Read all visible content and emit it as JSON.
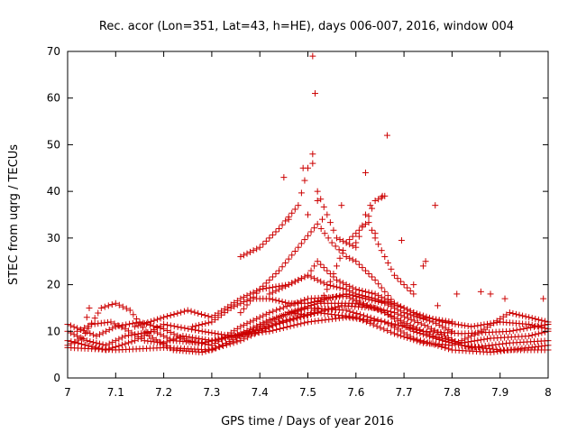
{
  "chart_data": {
    "type": "scatter",
    "title": "Rec. acor (Lon=351, Lat=43, h=HE), days 006-007, 2016, window 004",
    "xlabel": "GPS time / Days of year 2016",
    "ylabel": "STEC from uqrg / TECUs",
    "xlim": [
      7,
      8
    ],
    "ylim": [
      0,
      70
    ],
    "x_ticks": [
      7,
      7.1,
      7.2,
      7.3,
      7.4,
      7.5,
      7.6,
      7.7,
      7.8,
      7.9,
      8
    ],
    "x_tick_labels": [
      "7",
      "7.1",
      "7.2",
      "7.3",
      "7.4",
      "7.5",
      "7.6",
      "7.7",
      "7.8",
      "7.9",
      "8"
    ],
    "y_ticks": [
      0,
      10,
      20,
      30,
      40,
      50,
      60,
      70
    ],
    "y_tick_labels": [
      "0",
      "10",
      "20",
      "30",
      "40",
      "50",
      "60",
      "70"
    ],
    "marker": "+",
    "marker_color": "#cc0000",
    "grid": false,
    "point_spacing": 0.007,
    "tracks": [
      {
        "name": "track-1",
        "points": [
          [
            7.0,
            6.5
          ],
          [
            7.1,
            6.0
          ],
          [
            7.2,
            6.5
          ],
          [
            7.3,
            6.0
          ],
          [
            7.38,
            10.0
          ],
          [
            7.46,
            14.0
          ],
          [
            7.52,
            16.0
          ],
          [
            7.6,
            16.0
          ],
          [
            7.68,
            14.0
          ],
          [
            7.75,
            11.0
          ],
          [
            7.82,
            7.0
          ],
          [
            7.9,
            6.0
          ],
          [
            8.0,
            6.0
          ]
        ]
      },
      {
        "name": "track-2",
        "points": [
          [
            7.0,
            11.5
          ],
          [
            7.06,
            9.0
          ],
          [
            7.1,
            11.0
          ],
          [
            7.15,
            12.0
          ],
          [
            7.2,
            10.5
          ],
          [
            7.25,
            8.0
          ],
          [
            7.3,
            7.0
          ],
          [
            7.36,
            11.0
          ],
          [
            7.42,
            14.0
          ],
          [
            7.5,
            17.0
          ],
          [
            7.58,
            17.5
          ],
          [
            7.66,
            14.0
          ],
          [
            7.72,
            10.0
          ],
          [
            7.78,
            8.0
          ],
          [
            7.84,
            6.5
          ],
          [
            7.92,
            7.5
          ],
          [
            8.0,
            8.0
          ]
        ]
      },
      {
        "name": "track-3",
        "points": [
          [
            7.0,
            10.0
          ],
          [
            7.04,
            8.0
          ],
          [
            7.08,
            7.0
          ],
          [
            7.12,
            9.0
          ],
          [
            7.18,
            10.0
          ],
          [
            7.22,
            8.0
          ],
          [
            7.28,
            7.5
          ],
          [
            7.35,
            9.0
          ],
          [
            7.42,
            11.0
          ],
          [
            7.5,
            13.5
          ],
          [
            7.57,
            15.5
          ],
          [
            7.64,
            15.0
          ],
          [
            7.7,
            12.0
          ],
          [
            7.76,
            9.0
          ],
          [
            7.82,
            7.5
          ],
          [
            7.88,
            8.5
          ],
          [
            7.96,
            9.0
          ],
          [
            8.0,
            10.0
          ]
        ]
      },
      {
        "name": "track-4",
        "points": [
          [
            7.0,
            8.0
          ],
          [
            7.08,
            6.0
          ],
          [
            7.14,
            8.0
          ],
          [
            7.2,
            11.5
          ],
          [
            7.28,
            10.0
          ],
          [
            7.34,
            9.0
          ],
          [
            7.42,
            10.0
          ],
          [
            7.5,
            12.0
          ],
          [
            7.58,
            13.0
          ],
          [
            7.66,
            12.0
          ],
          [
            7.74,
            10.0
          ],
          [
            7.82,
            9.5
          ],
          [
            7.92,
            10.0
          ],
          [
            8.0,
            11.5
          ]
        ]
      },
      {
        "name": "track-5",
        "points": [
          [
            7.0,
            7.0
          ],
          [
            7.03,
            8.5
          ],
          [
            7.07,
            15.0
          ],
          [
            7.1,
            16.0
          ],
          [
            7.13,
            14.5
          ],
          [
            7.17,
            9.0
          ],
          [
            7.22,
            6.0
          ],
          [
            7.28,
            5.5
          ],
          [
            7.36,
            8.0
          ],
          [
            7.44,
            12.0
          ],
          [
            7.52,
            14.0
          ],
          [
            7.6,
            13.0
          ],
          [
            7.68,
            9.5
          ],
          [
            7.74,
            7.5
          ],
          [
            7.8,
            7.0
          ],
          [
            7.86,
            10.0
          ],
          [
            7.92,
            14.0
          ],
          [
            7.96,
            13.0
          ],
          [
            8.0,
            12.0
          ]
        ]
      },
      {
        "name": "track-6",
        "points": [
          [
            7.02,
            10.0
          ],
          [
            7.05,
            11.5
          ],
          [
            7.09,
            12.0
          ],
          [
            7.12,
            10.5
          ],
          [
            7.16,
            8.0
          ],
          [
            7.2,
            7.5
          ],
          [
            7.24,
            9.0
          ],
          [
            7.3,
            8.0
          ],
          [
            7.36,
            9.5
          ],
          [
            7.42,
            12.5
          ],
          [
            7.5,
            15.0
          ],
          [
            7.58,
            14.5
          ],
          [
            7.66,
            12.0
          ],
          [
            7.72,
            8.5
          ],
          [
            7.8,
            6.0
          ],
          [
            7.88,
            5.5
          ],
          [
            7.96,
            6.5
          ],
          [
            8.0,
            7.0
          ]
        ]
      },
      {
        "name": "track-7",
        "points": [
          [
            7.14,
            11.0
          ],
          [
            7.2,
            13.0
          ],
          [
            7.25,
            14.5
          ],
          [
            7.3,
            13.0
          ],
          [
            7.36,
            17.0
          ],
          [
            7.4,
            19.0
          ],
          [
            7.46,
            20.0
          ],
          [
            7.5,
            22.0
          ],
          [
            7.52,
            25.0
          ],
          [
            7.56,
            21.0
          ],
          [
            7.6,
            19.0
          ],
          [
            7.64,
            18.0
          ],
          [
            7.68,
            16.0
          ],
          [
            7.72,
            14.0
          ],
          [
            7.78,
            12.0
          ],
          [
            7.84,
            11.0
          ],
          [
            7.9,
            12.0
          ],
          [
            7.96,
            11.5
          ],
          [
            8.0,
            10.5
          ]
        ]
      },
      {
        "name": "track-8",
        "points": [
          [
            7.36,
            14.0
          ],
          [
            7.4,
            19.0
          ],
          [
            7.44,
            23.0
          ],
          [
            7.48,
            28.0
          ],
          [
            7.52,
            33.0
          ],
          [
            7.55,
            29.0
          ],
          [
            7.58,
            26.0
          ],
          [
            7.6,
            25.0
          ],
          [
            7.64,
            21.0
          ],
          [
            7.68,
            16.0
          ]
        ]
      },
      {
        "name": "track-9",
        "points": [
          [
            7.36,
            26.0
          ],
          [
            7.4,
            28.0
          ],
          [
            7.44,
            32.0
          ],
          [
            7.48,
            37.0
          ],
          [
            7.5,
            45.0
          ],
          [
            7.51,
            48.0
          ],
          [
            7.52,
            40.0
          ],
          [
            7.56,
            30.0
          ],
          [
            7.6,
            28.0
          ],
          [
            7.62,
            35.0
          ],
          [
            7.64,
            30.0
          ],
          [
            7.66,
            26.0
          ],
          [
            7.68,
            22.0
          ],
          [
            7.7,
            20.0
          ],
          [
            7.72,
            18.0
          ]
        ]
      },
      {
        "name": "track-10",
        "points": [
          [
            7.42,
            18.0
          ],
          [
            7.46,
            20.0
          ],
          [
            7.5,
            22.0
          ],
          [
            7.54,
            20.0
          ],
          [
            7.58,
            19.0
          ],
          [
            7.6,
            18.0
          ],
          [
            7.64,
            17.0
          ],
          [
            7.7,
            15.0
          ],
          [
            7.74,
            13.0
          ],
          [
            7.8,
            12.0
          ]
        ]
      },
      {
        "name": "track-11",
        "points": [
          [
            7.46,
            14.0
          ],
          [
            7.5,
            13.5
          ],
          [
            7.52,
            15.0
          ],
          [
            7.54,
            19.0
          ],
          [
            7.56,
            24.0
          ],
          [
            7.58,
            29.0
          ],
          [
            7.6,
            31.0
          ],
          [
            7.62,
            33.0
          ],
          [
            7.64,
            38.0
          ],
          [
            7.66,
            39.0
          ]
        ]
      },
      {
        "name": "track-12",
        "points": [
          [
            7.26,
            11.0
          ],
          [
            7.3,
            12.0
          ],
          [
            7.34,
            15.0
          ],
          [
            7.38,
            17.0
          ],
          [
            7.42,
            17.0
          ],
          [
            7.46,
            16.0
          ],
          [
            7.5,
            16.0
          ],
          [
            7.54,
            17.0
          ],
          [
            7.58,
            18.0
          ],
          [
            7.62,
            17.0
          ],
          [
            7.66,
            16.0
          ],
          [
            7.7,
            14.0
          ],
          [
            7.76,
            12.0
          ],
          [
            7.8,
            10.0
          ]
        ]
      }
    ],
    "isolated_points": [
      [
        7.51,
        69.0
      ],
      [
        7.515,
        61.0
      ],
      [
        7.665,
        52.0
      ],
      [
        7.62,
        44.0
      ],
      [
        7.45,
        43.0
      ],
      [
        7.49,
        45.0
      ],
      [
        7.51,
        46.0
      ],
      [
        7.63,
        37.0
      ],
      [
        7.765,
        37.0
      ],
      [
        7.655,
        39.0
      ],
      [
        7.57,
        37.0
      ],
      [
        7.46,
        34.0
      ],
      [
        7.5,
        35.0
      ],
      [
        7.53,
        34.0
      ],
      [
        7.64,
        31.0
      ],
      [
        7.695,
        29.5
      ],
      [
        7.745,
        25.0
      ],
      [
        7.74,
        24.0
      ],
      [
        7.72,
        20.0
      ],
      [
        7.77,
        15.5
      ],
      [
        7.81,
        18.0
      ],
      [
        7.86,
        18.5
      ],
      [
        7.88,
        18.0
      ],
      [
        7.91,
        17.0
      ],
      [
        7.99,
        17.0
      ],
      [
        7.04,
        13.0
      ],
      [
        7.045,
        15.0
      ],
      [
        7.52,
        38.0
      ],
      [
        7.6,
        29.0
      ]
    ]
  }
}
